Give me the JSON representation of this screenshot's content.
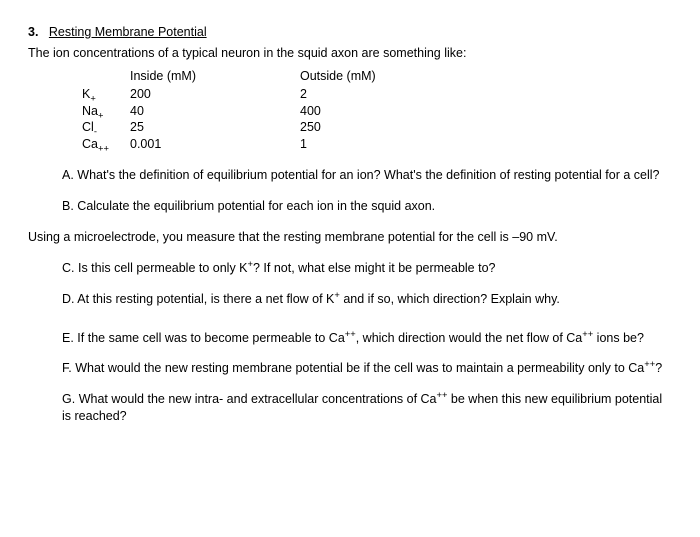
{
  "heading": {
    "number": "3.",
    "title": "Resting Membrane Potential"
  },
  "intro": "The ion concentrations of a typical neuron in the squid axon are something like:",
  "table": {
    "headers": {
      "inside": "Inside (mM)",
      "outside": "Outside (mM)"
    },
    "rows": [
      {
        "ion_base": "K",
        "ion_sub": "+",
        "inside": "200",
        "outside": "2"
      },
      {
        "ion_base": "Na",
        "ion_sub": "+",
        "inside": "40",
        "outside": "400"
      },
      {
        "ion_base": "Cl",
        "ion_sub": "-",
        "inside": " 25",
        "outside": "250"
      },
      {
        "ion_base": "Ca",
        "ion_sub": "++",
        "inside": "0.001",
        "outside": "1"
      }
    ]
  },
  "qa": {
    "a": {
      "label": "A.",
      "text": "What's the definition of equilibrium potential for an ion? What's the definition of resting potential for a cell?"
    },
    "b": {
      "label": "B.",
      "text": "Calculate the equilibrium potential for each ion in the squid axon."
    }
  },
  "mid": "Using a microelectrode, you measure that the resting membrane potential for the cell is –90 mV.",
  "qb": {
    "c": {
      "label": "C.",
      "pre": "Is this cell permeable to only K",
      "sup": "+",
      "post": "? If not, what else might it be permeable to?"
    },
    "d": {
      "label": "D.",
      "pre": "At this resting potential, is there a net flow of K",
      "sup": "+",
      "post": " and if so, which direction? Explain why."
    },
    "e": {
      "label": "E.",
      "pre": "If the same cell was to become permeable to Ca",
      "sup": "++",
      "mid": ", which direction would the net flow of Ca",
      "sup2": "++",
      "post": " ions be?"
    },
    "f": {
      "label": "F.",
      "pre": "What would the new resting membrane potential be if the cell was to maintain a permeability only to Ca",
      "sup": "++",
      "post": "?"
    },
    "g": {
      "label": "G.",
      "pre": "What would the new intra- and extracellular concentrations of Ca",
      "sup": "++",
      "post": " be when this new equilibrium potential is reached?"
    }
  }
}
